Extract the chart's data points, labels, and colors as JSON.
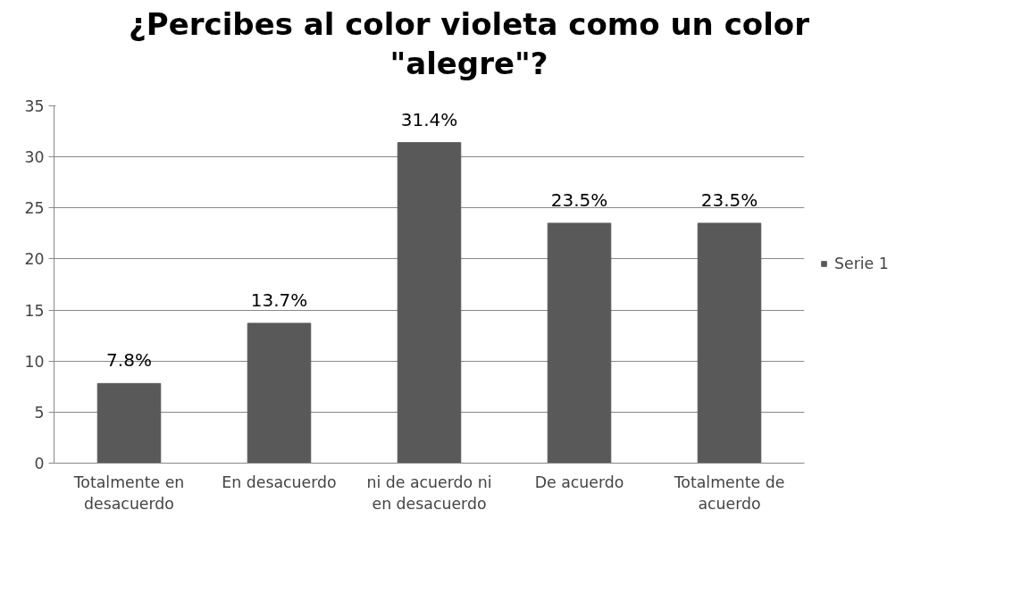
{
  "chart_data": {
    "type": "bar",
    "title": "¿Percibes al color violeta como un color \"alegre\"?",
    "categories": [
      "Totalmente en desacuerdo",
      "En desacuerdo",
      "ni de acuerdo ni en desacuerdo",
      "De acuerdo",
      "Totalmente de acuerdo"
    ],
    "series": [
      {
        "name": "Serie 1",
        "color": "#595959",
        "values": [
          7.8,
          13.7,
          31.4,
          23.5,
          23.5
        ],
        "value_labels": [
          "7.8%",
          "13.7%",
          "31.4%",
          "23.5%",
          "23.5%"
        ]
      }
    ],
    "ylim": [
      0,
      35
    ],
    "yticks": [
      0,
      5,
      10,
      15,
      20,
      25,
      30,
      35
    ],
    "grid": "y",
    "legend": "right"
  }
}
